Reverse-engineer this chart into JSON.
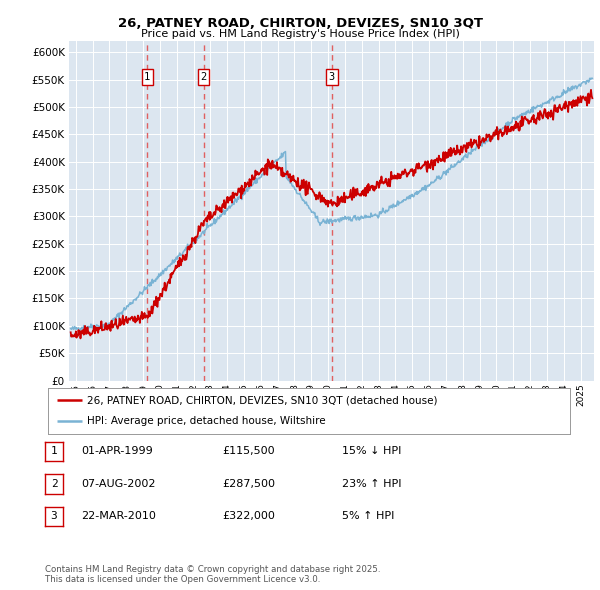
{
  "title": "26, PATNEY ROAD, CHIRTON, DEVIZES, SN10 3QT",
  "subtitle": "Price paid vs. HM Land Registry's House Price Index (HPI)",
  "background_color": "#dce6f0",
  "plot_bg_color": "#dce6f0",
  "hpi_color": "#7ab3d4",
  "price_color": "#cc0000",
  "dashed_color": "#e06060",
  "ylim": [
    0,
    620000
  ],
  "yticks": [
    0,
    50000,
    100000,
    150000,
    200000,
    250000,
    300000,
    350000,
    400000,
    450000,
    500000,
    550000,
    600000
  ],
  "sales": [
    {
      "num": 1,
      "date_x": 1999.25,
      "price": 115500,
      "label": "1"
    },
    {
      "num": 2,
      "date_x": 2002.6,
      "price": 287500,
      "label": "2"
    },
    {
      "num": 3,
      "date_x": 2010.22,
      "price": 322000,
      "label": "3"
    }
  ],
  "legend_line1": "26, PATNEY ROAD, CHIRTON, DEVIZES, SN10 3QT (detached house)",
  "legend_line2": "HPI: Average price, detached house, Wiltshire",
  "table": [
    {
      "num": "1",
      "date": "01-APR-1999",
      "price": "£115,500",
      "change": "15% ↓ HPI"
    },
    {
      "num": "2",
      "date": "07-AUG-2002",
      "price": "£287,500",
      "change": "23% ↑ HPI"
    },
    {
      "num": "3",
      "date": "22-MAR-2010",
      "price": "£322,000",
      "change": "5% ↑ HPI"
    }
  ],
  "footnote": "Contains HM Land Registry data © Crown copyright and database right 2025.\nThis data is licensed under the Open Government Licence v3.0.",
  "xmin": 1994.6,
  "xmax": 2025.8,
  "xtick_years": [
    1995,
    1996,
    1997,
    1998,
    1999,
    2000,
    2001,
    2002,
    2003,
    2004,
    2005,
    2006,
    2007,
    2008,
    2009,
    2010,
    2011,
    2012,
    2013,
    2014,
    2015,
    2016,
    2017,
    2018,
    2019,
    2020,
    2021,
    2022,
    2023,
    2024,
    2025
  ]
}
